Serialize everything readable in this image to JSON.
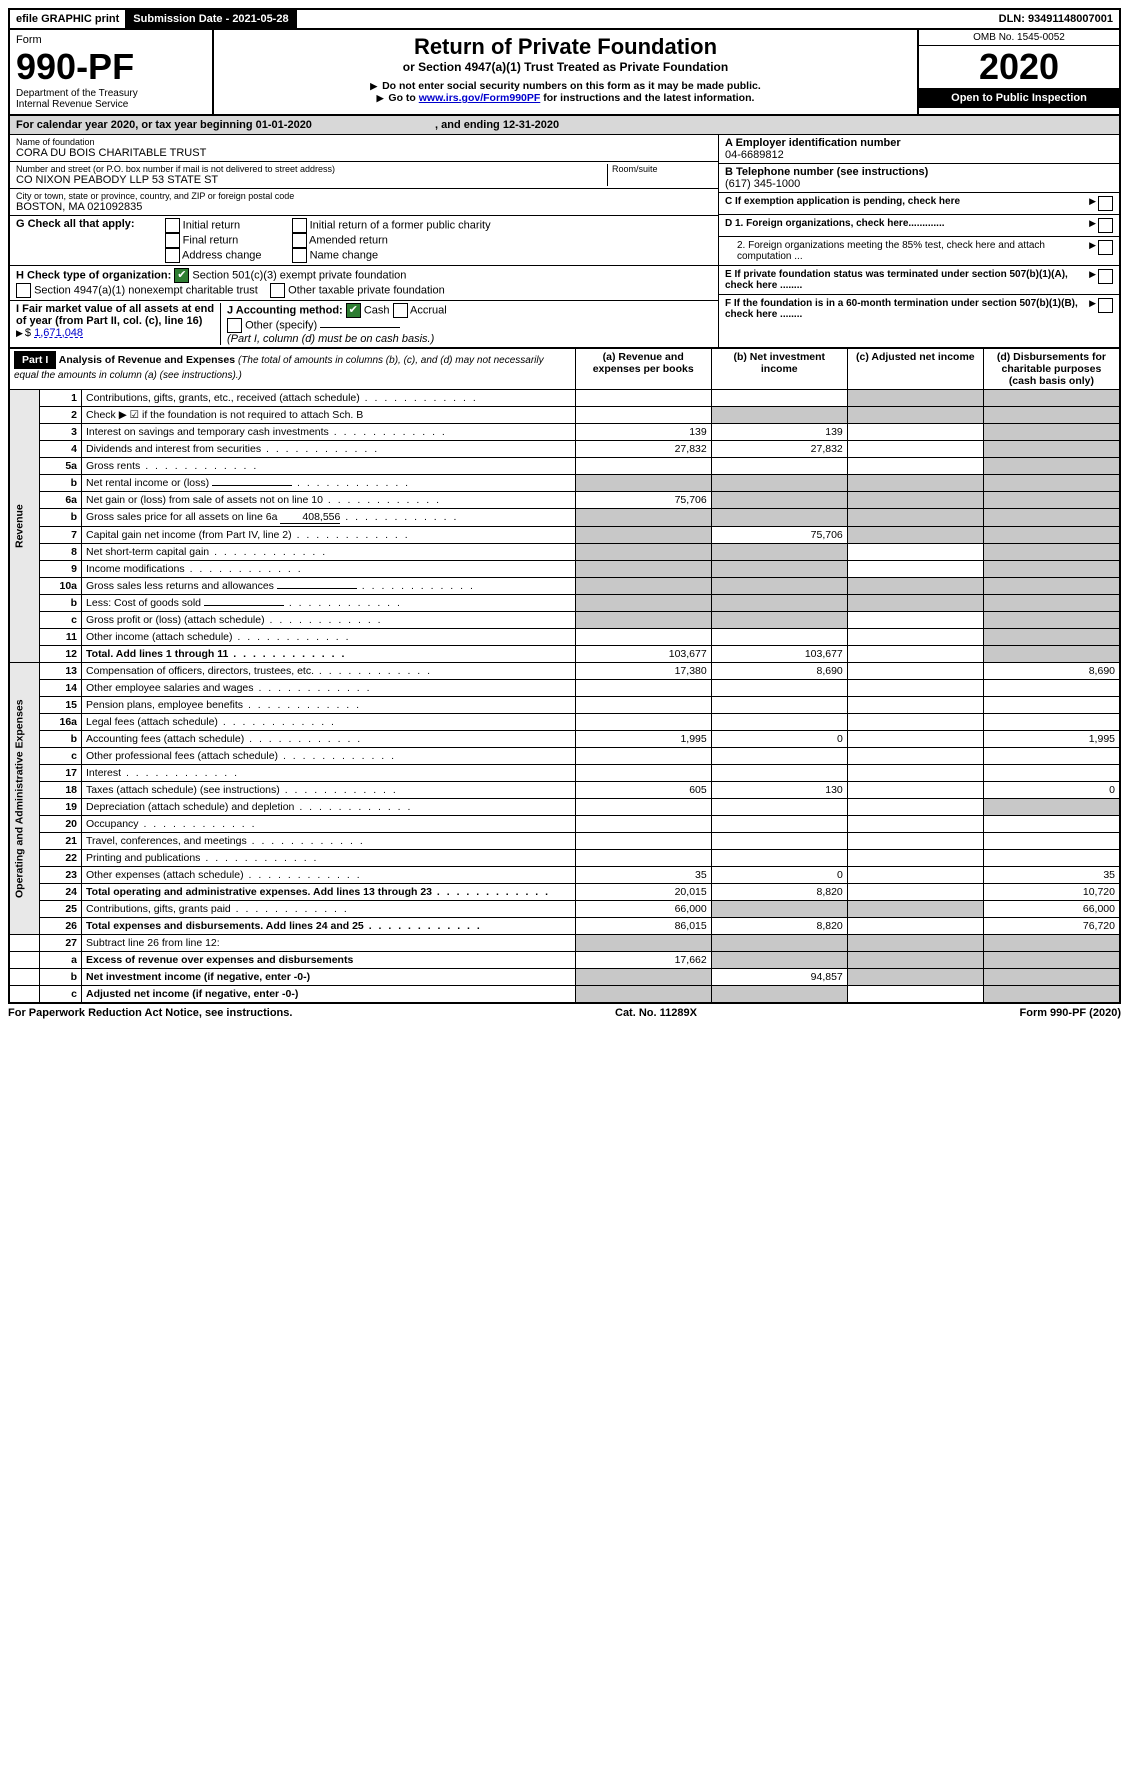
{
  "topbar": {
    "efile": "efile GRAPHIC print",
    "submission": "Submission Date - 2021-05-28",
    "dln": "DLN: 93491148007001"
  },
  "header": {
    "form_label": "Form",
    "form_num": "990-PF",
    "dept": "Department of the Treasury",
    "irs": "Internal Revenue Service",
    "title": "Return of Private Foundation",
    "subtitle": "or Section 4947(a)(1) Trust Treated as Private Foundation",
    "bullet1": "Do not enter social security numbers on this form as it may be made public.",
    "bullet2_pre": "Go to ",
    "bullet2_link": "www.irs.gov/Form990PF",
    "bullet2_post": " for instructions and the latest information.",
    "omb": "OMB No. 1545-0052",
    "year": "2020",
    "open": "Open to Public Inspection"
  },
  "cal": {
    "text_pre": "For calendar year 2020, or tax year beginning ",
    "begin": "01-01-2020",
    "mid": ", and ending ",
    "end": "12-31-2020"
  },
  "entity": {
    "name_lbl": "Name of foundation",
    "name": "CORA DU BOIS CHARITABLE TRUST",
    "addr_lbl": "Number and street (or P.O. box number if mail is not delivered to street address)",
    "addr": "CO NIXON PEABODY LLP 53 STATE ST",
    "room_lbl": "Room/suite",
    "city_lbl": "City or town, state or province, country, and ZIP or foreign postal code",
    "city": "BOSTON, MA  021092835",
    "ein_lbl": "A Employer identification number",
    "ein": "04-6689812",
    "tel_lbl": "B Telephone number (see instructions)",
    "tel": "(617) 345-1000",
    "c_lbl": "C  If exemption application is pending, check here",
    "d1": "D 1. Foreign organizations, check here.............",
    "d2": "2. Foreign organizations meeting the 85% test, check here and attach computation ...",
    "e": "E  If private foundation status was terminated under section 507(b)(1)(A), check here ........",
    "f": "F  If the foundation is in a 60-month termination under section 507(b)(1)(B), check here ........"
  },
  "g": {
    "lbl": "G Check all that apply:",
    "opts": [
      "Initial return",
      "Final return",
      "Address change",
      "Initial return of a former public charity",
      "Amended return",
      "Name change"
    ]
  },
  "h": {
    "lbl": "H Check type of organization:",
    "o1": "Section 501(c)(3) exempt private foundation",
    "o2": "Section 4947(a)(1) nonexempt charitable trust",
    "o3": "Other taxable private foundation"
  },
  "i": {
    "lbl": "I Fair market value of all assets at end of year (from Part II, col. (c), line 16)",
    "val": "1,671,048"
  },
  "j": {
    "lbl": "J Accounting method:",
    "cash": "Cash",
    "accrual": "Accrual",
    "other": "Other (specify)",
    "note": "(Part I, column (d) must be on cash basis.)"
  },
  "part1": {
    "hdr": "Part I",
    "title": "Analysis of Revenue and Expenses",
    "note": "(The total of amounts in columns (b), (c), and (d) may not necessarily equal the amounts in column (a) (see instructions).)",
    "cols": {
      "a": "(a) Revenue and expenses per books",
      "b": "(b) Net investment income",
      "c": "(c) Adjusted net income",
      "d": "(d) Disbursements for charitable purposes (cash basis only)"
    }
  },
  "sections": {
    "revenue": "Revenue",
    "opex": "Operating and Administrative Expenses"
  },
  "rows": [
    {
      "n": "1",
      "l": "Contributions, gifts, grants, etc., received (attach schedule)",
      "a": "",
      "b": "",
      "c": "s",
      "d": "s"
    },
    {
      "n": "2",
      "l": "Check ▶ ☑ if the foundation is not required to attach Sch. B",
      "a": "",
      "b": "s",
      "c": "s",
      "d": "s",
      "nodots": true
    },
    {
      "n": "3",
      "l": "Interest on savings and temporary cash investments",
      "a": "139",
      "b": "139",
      "c": "",
      "d": "s"
    },
    {
      "n": "4",
      "l": "Dividends and interest from securities",
      "a": "27,832",
      "b": "27,832",
      "c": "",
      "d": "s"
    },
    {
      "n": "5a",
      "l": "Gross rents",
      "a": "",
      "b": "",
      "c": "",
      "d": "s"
    },
    {
      "n": "b",
      "l": "Net rental income or (loss)",
      "a": "s",
      "b": "s",
      "c": "s",
      "d": "s",
      "blank": true
    },
    {
      "n": "6a",
      "l": "Net gain or (loss) from sale of assets not on line 10",
      "a": "75,706",
      "b": "s",
      "c": "s",
      "d": "s"
    },
    {
      "n": "b",
      "l": "Gross sales price for all assets on line 6a",
      "a": "s",
      "b": "s",
      "c": "s",
      "d": "s",
      "inline": "408,556"
    },
    {
      "n": "7",
      "l": "Capital gain net income (from Part IV, line 2)",
      "a": "s",
      "b": "75,706",
      "c": "s",
      "d": "s"
    },
    {
      "n": "8",
      "l": "Net short-term capital gain",
      "a": "s",
      "b": "s",
      "c": "",
      "d": "s"
    },
    {
      "n": "9",
      "l": "Income modifications",
      "a": "s",
      "b": "s",
      "c": "",
      "d": "s"
    },
    {
      "n": "10a",
      "l": "Gross sales less returns and allowances",
      "a": "s",
      "b": "s",
      "c": "s",
      "d": "s",
      "blank": true
    },
    {
      "n": "b",
      "l": "Less: Cost of goods sold",
      "a": "s",
      "b": "s",
      "c": "s",
      "d": "s",
      "blank": true
    },
    {
      "n": "c",
      "l": "Gross profit or (loss) (attach schedule)",
      "a": "s",
      "b": "s",
      "c": "",
      "d": "s"
    },
    {
      "n": "11",
      "l": "Other income (attach schedule)",
      "a": "",
      "b": "",
      "c": "",
      "d": "s"
    },
    {
      "n": "12",
      "l": "Total. Add lines 1 through 11",
      "a": "103,677",
      "b": "103,677",
      "c": "",
      "d": "s",
      "bold": true
    }
  ],
  "exprows": [
    {
      "n": "13",
      "l": "Compensation of officers, directors, trustees, etc.",
      "a": "17,380",
      "b": "8,690",
      "c": "",
      "d": "8,690"
    },
    {
      "n": "14",
      "l": "Other employee salaries and wages",
      "a": "",
      "b": "",
      "c": "",
      "d": ""
    },
    {
      "n": "15",
      "l": "Pension plans, employee benefits",
      "a": "",
      "b": "",
      "c": "",
      "d": ""
    },
    {
      "n": "16a",
      "l": "Legal fees (attach schedule)",
      "a": "",
      "b": "",
      "c": "",
      "d": ""
    },
    {
      "n": "b",
      "l": "Accounting fees (attach schedule)",
      "a": "1,995",
      "b": "0",
      "c": "",
      "d": "1,995"
    },
    {
      "n": "c",
      "l": "Other professional fees (attach schedule)",
      "a": "",
      "b": "",
      "c": "",
      "d": ""
    },
    {
      "n": "17",
      "l": "Interest",
      "a": "",
      "b": "",
      "c": "",
      "d": ""
    },
    {
      "n": "18",
      "l": "Taxes (attach schedule) (see instructions)",
      "a": "605",
      "b": "130",
      "c": "",
      "d": "0"
    },
    {
      "n": "19",
      "l": "Depreciation (attach schedule) and depletion",
      "a": "",
      "b": "",
      "c": "",
      "d": "s"
    },
    {
      "n": "20",
      "l": "Occupancy",
      "a": "",
      "b": "",
      "c": "",
      "d": ""
    },
    {
      "n": "21",
      "l": "Travel, conferences, and meetings",
      "a": "",
      "b": "",
      "c": "",
      "d": ""
    },
    {
      "n": "22",
      "l": "Printing and publications",
      "a": "",
      "b": "",
      "c": "",
      "d": ""
    },
    {
      "n": "23",
      "l": "Other expenses (attach schedule)",
      "a": "35",
      "b": "0",
      "c": "",
      "d": "35"
    },
    {
      "n": "24",
      "l": "Total operating and administrative expenses. Add lines 13 through 23",
      "a": "20,015",
      "b": "8,820",
      "c": "",
      "d": "10,720",
      "bold": true
    },
    {
      "n": "25",
      "l": "Contributions, gifts, grants paid",
      "a": "66,000",
      "b": "s",
      "c": "s",
      "d": "66,000"
    },
    {
      "n": "26",
      "l": "Total expenses and disbursements. Add lines 24 and 25",
      "a": "86,015",
      "b": "8,820",
      "c": "",
      "d": "76,720",
      "bold": true
    }
  ],
  "line27": [
    {
      "n": "27",
      "l": "Subtract line 26 from line 12:",
      "a": "s",
      "b": "s",
      "c": "s",
      "d": "s"
    },
    {
      "n": "a",
      "l": "Excess of revenue over expenses and disbursements",
      "a": "17,662",
      "b": "s",
      "c": "s",
      "d": "s",
      "bold": true
    },
    {
      "n": "b",
      "l": "Net investment income (if negative, enter -0-)",
      "a": "s",
      "b": "94,857",
      "c": "s",
      "d": "s",
      "bold": true
    },
    {
      "n": "c",
      "l": "Adjusted net income (if negative, enter -0-)",
      "a": "s",
      "b": "s",
      "c": "",
      "d": "s",
      "bold": true
    }
  ],
  "footer": {
    "pra": "For Paperwork Reduction Act Notice, see instructions.",
    "cat": "Cat. No. 11289X",
    "form": "Form 990-PF (2020)"
  }
}
